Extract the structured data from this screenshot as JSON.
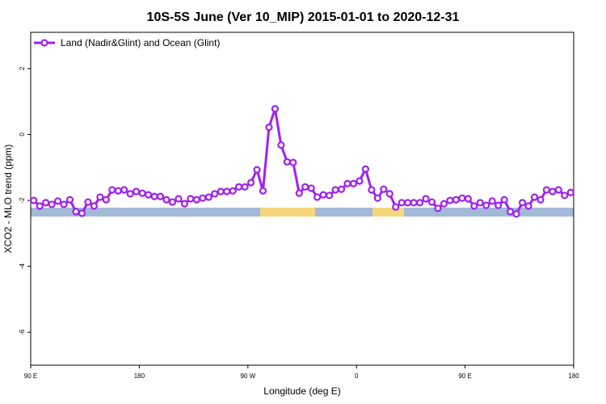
{
  "chart_data": {
    "type": "line",
    "title": "10S-5S June (Ver 10_MIP)   2015-01-01 to 2020-12-31",
    "x_label": "Longitude (deg E)",
    "y_label": "XCO2 - MLO trend (ppm)",
    "x": [
      92.5,
      97.5,
      102.5,
      107.5,
      112.5,
      117.5,
      122.5,
      127.5,
      132.5,
      137.5,
      142.5,
      147.5,
      152.5,
      157.5,
      162.5,
      167.5,
      172.5,
      177.5,
      182.5,
      187.5,
      192.5,
      197.5,
      202.5,
      207.5,
      212.5,
      217.5,
      222.5,
      227.5,
      232.5,
      237.5,
      242.5,
      247.5,
      252.5,
      257.5,
      262.5,
      267.5,
      272.5,
      277.5,
      282.5,
      287.5,
      292.5,
      297.5,
      302.5,
      307.5,
      312.5,
      317.5,
      322.5,
      327.5,
      332.5,
      337.5,
      342.5,
      347.5,
      352.5,
      357.5,
      362.5,
      367.5,
      372.5,
      377.5,
      382.5,
      387.5,
      392.5,
      397.5,
      402.5,
      407.5,
      412.5,
      417.5,
      422.5,
      427.5,
      432.5,
      437.5,
      442.5,
      447.5,
      452.5,
      457.5,
      462.5,
      467.5,
      472.5,
      477.5,
      482.5,
      487.5,
      492.5,
      497.5,
      502.5,
      507.5,
      512.5,
      517.5,
      522.5,
      527.5,
      532.5,
      537.5
    ],
    "series": [
      {
        "name": "Land (Nadir&Glint) and Ocean (Glint)",
        "color": "#a020f0",
        "values": [
          -2.0,
          -2.17,
          -2.07,
          -2.12,
          -2.02,
          -2.12,
          -1.98,
          -2.34,
          -2.39,
          -2.05,
          -2.17,
          -1.9,
          -1.98,
          -1.68,
          -1.71,
          -1.68,
          -1.8,
          -1.73,
          -1.78,
          -1.83,
          -1.88,
          -1.88,
          -1.98,
          -2.05,
          -1.95,
          -2.1,
          -1.95,
          -1.98,
          -1.93,
          -1.9,
          -1.8,
          -1.73,
          -1.73,
          -1.71,
          -1.59,
          -1.59,
          -1.46,
          -1.07,
          -1.71,
          0.22,
          0.78,
          -0.32,
          -0.83,
          -0.85,
          -1.78,
          -1.59,
          -1.63,
          -1.9,
          -1.83,
          -1.85,
          -1.68,
          -1.66,
          -1.49,
          -1.49,
          -1.41,
          -1.05,
          -1.68,
          -1.93,
          -1.66,
          -1.8,
          -2.2,
          -2.07,
          -2.07,
          -2.07,
          -2.07,
          -1.95,
          -2.05,
          -2.24,
          -2.1,
          -2.0,
          -1.98,
          -1.93,
          -1.95,
          -2.17,
          -2.07,
          -2.15,
          -2.02,
          -2.15,
          -1.98,
          -2.34,
          -2.41,
          -2.07,
          -2.17,
          -1.9,
          -1.98,
          -1.68,
          -1.73,
          -1.68,
          -1.85,
          -1.76
        ]
      }
    ],
    "xlim": [
      90,
      540
    ],
    "xticks": [
      {
        "value": 90,
        "label": "90 E"
      },
      {
        "value": 180,
        "label": "180"
      },
      {
        "value": 270,
        "label": "90 W"
      },
      {
        "value": 360,
        "label": "0"
      },
      {
        "value": 450,
        "label": "90 E"
      },
      {
        "value": 540,
        "label": "180"
      }
    ],
    "ylim": [
      -7,
      3.1
    ],
    "yticks": [
      -6,
      -4,
      -2,
      0,
      2
    ],
    "legend": "top-left"
  }
}
